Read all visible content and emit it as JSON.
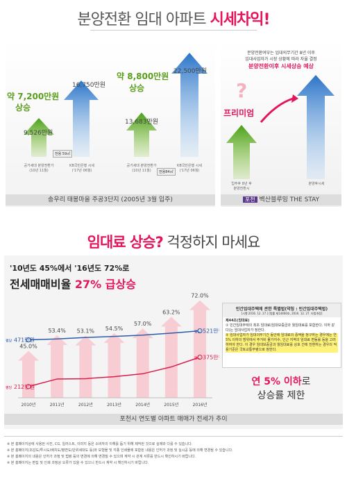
{
  "header": {
    "title_prefix": "분양전환 임대 아파트 ",
    "title_highlight": "시세차익!"
  },
  "left_panel": {
    "group1": {
      "rise_label_line1": "약 7,200만원",
      "rise_label_line2": "상승",
      "before_value": "9,526만원",
      "after_value": "16,750만원",
      "area_tag": "전용 59㎡",
      "caption_before": "공가세대 분양전환가\n(10년 11월)",
      "caption_after": "KB국민은행 시세\n('17년 06월)"
    },
    "group2": {
      "rise_label_line1": "약 8,800만원",
      "rise_label_line2": "상승",
      "before_value": "13,683만원",
      "after_value": "22,500만원",
      "area_tag": "전용84㎡",
      "caption_before": "공가세대 분양전환가\n(10년 11월)",
      "caption_after": "KB국민은행 시세\n('17년 06월)"
    },
    "footer_caption": "송우리 태봉마을 주공3단지 (2005년 3월 입주)"
  },
  "right_panel": {
    "text_line1": "분양전환여부는 임대의무기간 8년 이후",
    "text_line2": "임대사업자가 시장 상황에 따라 자율 결정",
    "highlight": "분양전환이후 시세상승 예상",
    "question": "?",
    "premium": "프리미엄",
    "caption_left": "입주후 8년 후\n분양전환시",
    "caption_right": "분양후시세",
    "footer_tag": "포천",
    "footer_text": "벽산블루밍 THE STAY"
  },
  "section2": {
    "title_highlight": "임대료 상승?",
    "title_rest": " 걱정하지 마세요",
    "subtitle": "'10년도 45%에서 '16년도 72%로",
    "big_title_black": "전세매매비율 ",
    "big_title_pink": "27% 급상승",
    "chart_caption": "포천시 연도별 아파트 매매가 전세가 추이"
  },
  "chart_data": {
    "type": "line",
    "categories": [
      "2010년",
      "2011년",
      "2012년",
      "2013년",
      "2014년",
      "2015년",
      "2016년"
    ],
    "ratio_labels": [
      "45.0%",
      "53.4%",
      "53.1%",
      "54.5%",
      "57.0%",
      "63.2%",
      "72.0%"
    ],
    "ratio_values": [
      45.0,
      53.4,
      53.1,
      54.5,
      57.0,
      63.2,
      72.0
    ],
    "series": [
      {
        "name": "평당",
        "start_label": "471만원",
        "end_label": "521만원",
        "color": "#2d5aa8",
        "values": [
          471,
          476,
          484,
          490,
          497,
          508,
          521
        ]
      },
      {
        "name": "평당",
        "start_label": "212만원",
        "end_label": "375만원",
        "color": "#d81d4b",
        "values": [
          212,
          254,
          256,
          267,
          283,
          321,
          375
        ]
      }
    ]
  },
  "law_box": {
    "title": "민간임대주택에 관한 특별법(약칭 : 민간임대주택법)",
    "subtitle": "[시행 2016. 12. 27.] [법률 제14460호, 2016. 12. 27. 타법개정]",
    "article": "제44조(임대료)",
    "item1": "① 민간임대주택의 최초 임대료(임대보증금과 월임대료를 포함한다. 이하 같다)는 임대사업자가 정한다.",
    "item2": "② 임대사업자가 임대의무기간 동안에 임대료의 증액을 청구하는 경우에는 연 5% 이하의 범위에서 주거비 물가지수, 인근 지역의 임대료 변동률 등을 고려하여야 한다. 이 경우 임대보증금과 월임대료를 상호 간에 전환하는 경우의 적용기준은 국토교통부령으로 정한다.",
    "callout_bold": "연 5% 이하",
    "callout_rest": "로",
    "callout_line2": "상승률 제한"
  },
  "notes": [
    "※ 본 홍페이지상에 사용된 사진, CG, 일러스트, 이미지 등은 소비자의 이해를 돕기 위해 제작된 것으로 실제와 다를 수 있습니다.",
    "※ 본 홍페이지(조감도/투시도/배치도/평면도/단위세대도 등)와 모형물 및 각종 인쇄물에 포함된 내용은 인허가 과정 및 실시공 등에 의해 변경될 수 있습니다.",
    "※ 본 홍페이지의 내용은 인허가 과정 및 법령 등의 변경에 의해 변경될 수 있으며 계약 시 관계 서류를 반드시 확인하시기 바랍니다.",
    "※ 본 홍페이지는 편집 및 인쇄 과정상 오류가 있을 수 있으니 반드시 계약 시 확인하시기 바랍니다."
  ]
}
